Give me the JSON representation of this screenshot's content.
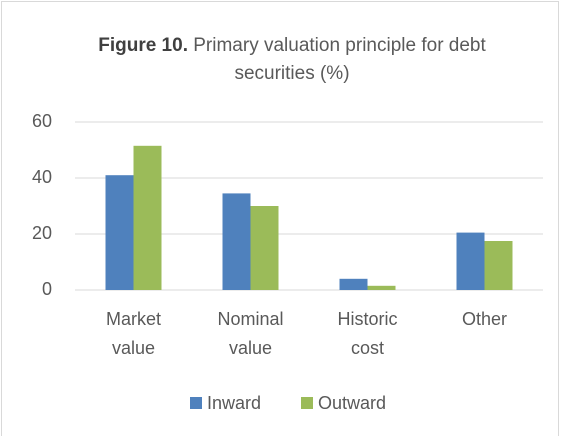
{
  "chart_data": {
    "type": "bar",
    "figure_label": "Figure 10.",
    "title": "Primary valuation principle for debt securities (%)",
    "categories": [
      "Market value",
      "Nominal value",
      "Historic cost",
      "Other"
    ],
    "series": [
      {
        "name": "Inward",
        "color": "#4f81bd",
        "values": [
          41,
          34.5,
          4,
          20.5
        ]
      },
      {
        "name": "Outward",
        "color": "#9bbb59",
        "values": [
          51.5,
          30,
          1.5,
          17.5
        ]
      }
    ],
    "ylim": [
      0,
      60
    ],
    "yticks": [
      0,
      20,
      40,
      60
    ],
    "grid": true,
    "legend": "bottom"
  }
}
